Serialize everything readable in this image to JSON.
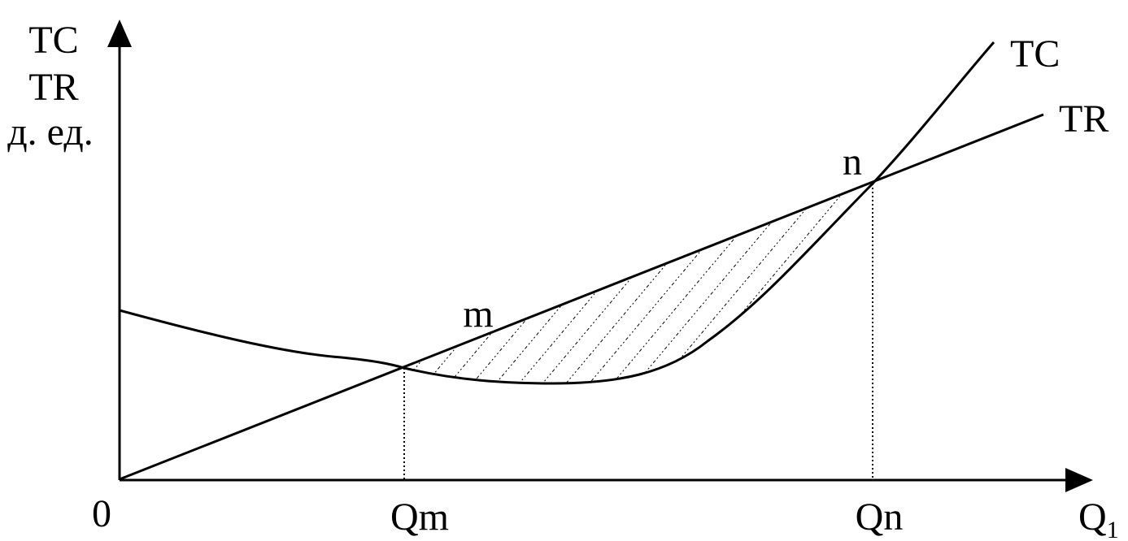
{
  "axes": {
    "y_label": [
      "TC",
      "TR",
      "д. ед."
    ],
    "origin": "0",
    "x_label": {
      "text": "Q",
      "subscript": "1"
    }
  },
  "x_points": [
    "Qm",
    "Qn"
  ],
  "points": [
    "m",
    "n"
  ],
  "curves": [
    "TC",
    "TR"
  ]
}
